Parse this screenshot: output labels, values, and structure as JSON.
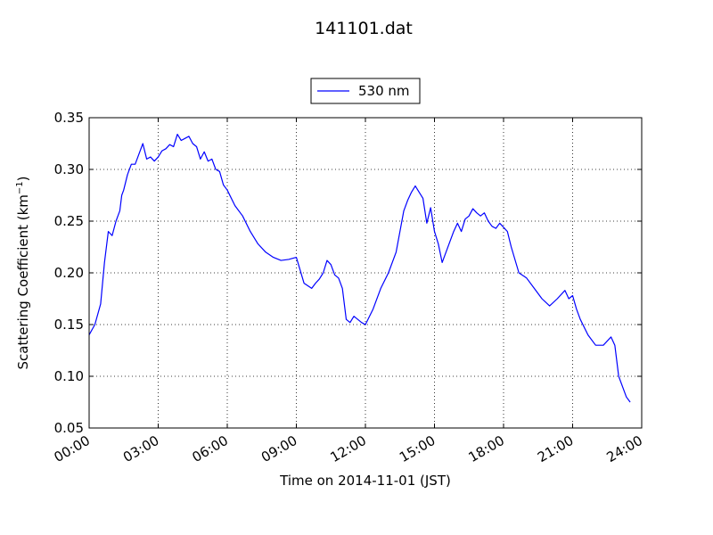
{
  "chart_data": {
    "type": "line",
    "title": "141101.dat",
    "xlabel": "Time on 2014-11-01 (JST)",
    "ylabel": "Scattering Coefficient (km",
    "ylabel_sup": "−1",
    "ylabel_close": ")",
    "xlim": [
      "00:00",
      "24:00"
    ],
    "ylim": [
      0.05,
      0.35
    ],
    "x_ticks": [
      "00:00",
      "03:00",
      "06:00",
      "09:00",
      "12:00",
      "15:00",
      "18:00",
      "21:00",
      "24:00"
    ],
    "y_ticks": [
      "0.05",
      "0.10",
      "0.15",
      "0.20",
      "0.25",
      "0.30",
      "0.35"
    ],
    "grid": true,
    "legend_position": "top-center, above plot",
    "series": [
      {
        "name": "530 nm",
        "color": "#0000ff",
        "x": [
          "00:00",
          "00:15",
          "00:30",
          "00:40",
          "00:50",
          "01:00",
          "01:10",
          "01:15",
          "01:20",
          "01:25",
          "01:30",
          "01:40",
          "01:50",
          "02:00",
          "02:10",
          "02:20",
          "02:30",
          "02:40",
          "02:50",
          "03:00",
          "03:10",
          "03:20",
          "03:30",
          "03:40",
          "03:50",
          "04:00",
          "04:10",
          "04:20",
          "04:30",
          "04:40",
          "04:50",
          "05:00",
          "05:10",
          "05:20",
          "05:30",
          "05:40",
          "05:50",
          "06:00",
          "06:20",
          "06:40",
          "07:00",
          "07:20",
          "07:40",
          "08:00",
          "08:20",
          "08:40",
          "09:00",
          "09:20",
          "09:40",
          "09:50",
          "10:00",
          "10:10",
          "10:20",
          "10:30",
          "10:40",
          "10:50",
          "11:00",
          "11:10",
          "11:20",
          "11:30",
          "11:40",
          "11:50",
          "12:00",
          "12:20",
          "12:40",
          "13:00",
          "13:20",
          "13:40",
          "13:50",
          "14:00",
          "14:10",
          "14:20",
          "14:30",
          "14:40",
          "14:50",
          "15:00",
          "15:10",
          "15:20",
          "15:30",
          "15:40",
          "15:50",
          "16:00",
          "16:10",
          "16:20",
          "16:30",
          "16:40",
          "16:50",
          "17:00",
          "17:10",
          "17:20",
          "17:30",
          "17:40",
          "17:50",
          "18:00",
          "18:10",
          "18:20",
          "18:40",
          "19:00",
          "19:20",
          "19:40",
          "20:00",
          "20:20",
          "20:40",
          "20:50",
          "21:00",
          "21:10",
          "21:20",
          "21:40",
          "22:00",
          "22:20",
          "22:40",
          "22:50",
          "23:00",
          "23:10",
          "23:20",
          "23:30"
        ],
        "y": [
          0.14,
          0.15,
          0.17,
          0.21,
          0.24,
          0.236,
          0.25,
          0.255,
          0.26,
          0.275,
          0.28,
          0.295,
          0.305,
          0.305,
          0.315,
          0.325,
          0.31,
          0.312,
          0.308,
          0.312,
          0.318,
          0.32,
          0.324,
          0.322,
          0.334,
          0.328,
          0.33,
          0.332,
          0.325,
          0.322,
          0.31,
          0.317,
          0.308,
          0.31,
          0.3,
          0.298,
          0.285,
          0.28,
          0.265,
          0.255,
          0.24,
          0.228,
          0.22,
          0.215,
          0.212,
          0.213,
          0.215,
          0.19,
          0.185,
          0.19,
          0.194,
          0.2,
          0.212,
          0.208,
          0.198,
          0.195,
          0.185,
          0.155,
          0.152,
          0.158,
          0.155,
          0.152,
          0.15,
          0.165,
          0.185,
          0.2,
          0.22,
          0.26,
          0.27,
          0.278,
          0.284,
          0.278,
          0.272,
          0.248,
          0.263,
          0.24,
          0.228,
          0.21,
          0.22,
          0.23,
          0.24,
          0.248,
          0.24,
          0.252,
          0.255,
          0.262,
          0.258,
          0.255,
          0.258,
          0.25,
          0.245,
          0.243,
          0.248,
          0.244,
          0.24,
          0.225,
          0.2,
          0.195,
          0.185,
          0.175,
          0.168,
          0.175,
          0.183,
          0.175,
          0.178,
          0.165,
          0.155,
          0.14,
          0.13,
          0.13,
          0.138,
          0.13,
          0.1,
          0.09,
          0.08,
          0.075
        ]
      }
    ]
  }
}
